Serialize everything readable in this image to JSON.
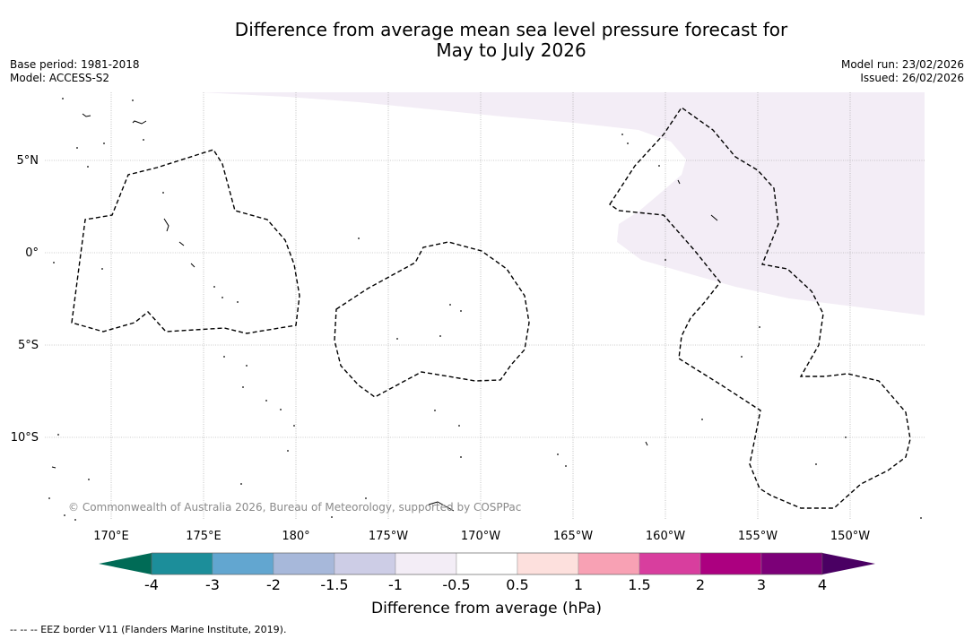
{
  "title": {
    "line1": "Difference from average mean sea level pressure forecast for",
    "line2": "May to July 2026"
  },
  "meta": {
    "base_period": "Base period: 1981-2018",
    "model": "Model: ACCESS-S2",
    "model_run": "Model run: 23/02/2026",
    "issued": "Issued: 26/02/2026"
  },
  "map": {
    "lat_labels": [
      "5°N",
      "0°",
      "5°S",
      "10°S"
    ],
    "lon_labels": [
      "170°E",
      "175°E",
      "180°",
      "175°W",
      "170°W",
      "165°W",
      "160°W",
      "155°W",
      "150°W"
    ],
    "copyright": "© Commonwealth of Australia 2026, Bureau of Meteorology, supported by COSPPac",
    "anomaly_fill_color": "#f3edf6"
  },
  "colorbar": {
    "label": "Difference from average (hPa)",
    "ticks": [
      "-4",
      "-3",
      "-2",
      "-1.5",
      "-1",
      "-0.5",
      "0.5",
      "1",
      "1.5",
      "2",
      "3",
      "4"
    ],
    "colors": [
      "#006b56",
      "#1c8e9a",
      "#62a6d0",
      "#a7b8da",
      "#cdcde6",
      "#f3edf6",
      "#ffffff",
      "#fde0dd",
      "#f8a1b4",
      "#d83e9e",
      "#ac0080",
      "#7c0078",
      "#4a0063"
    ]
  },
  "footnote": "--  --  -- EEZ border V11 (Flanders Marine Institute, 2019)."
}
